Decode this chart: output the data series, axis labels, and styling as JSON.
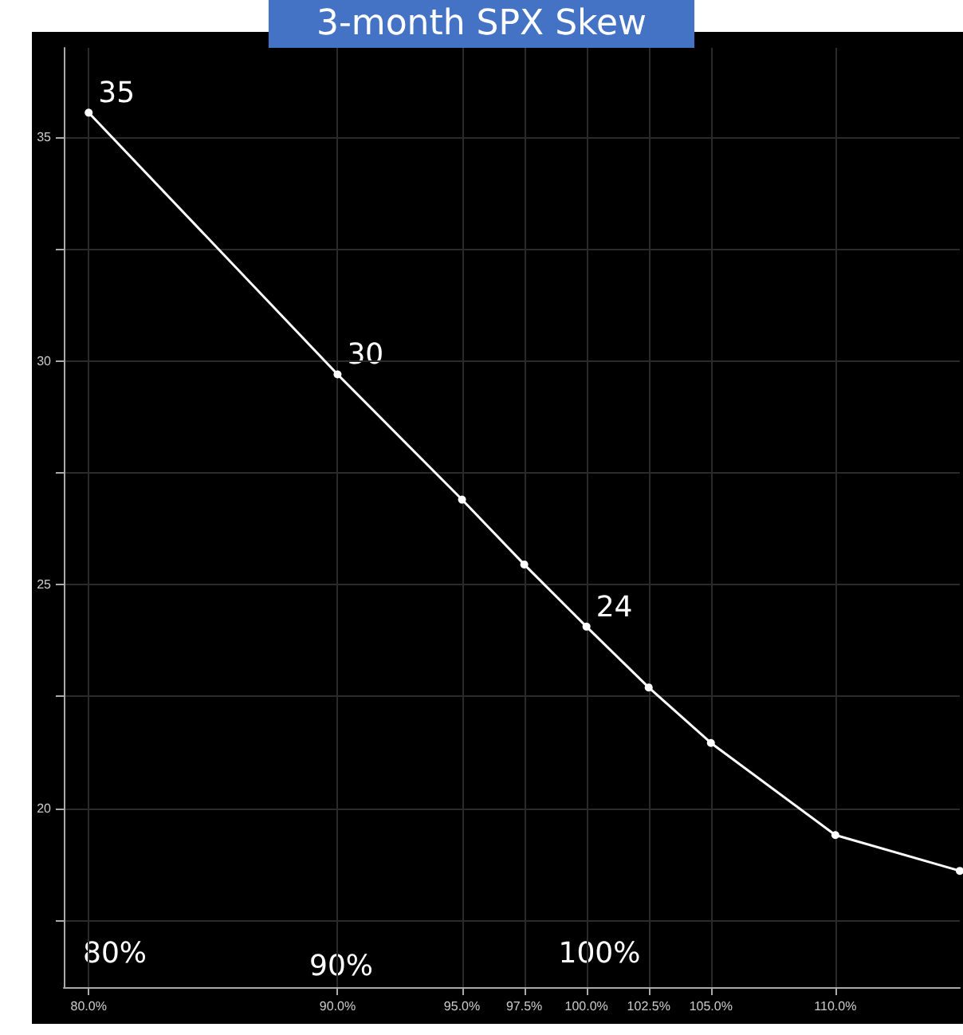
{
  "chart_data": {
    "type": "line",
    "title": "3-month SPX Skew",
    "x": [
      80,
      90,
      95,
      97.5,
      100,
      102.5,
      105,
      110,
      115
    ],
    "series": [
      {
        "color": "#ffffff",
        "values": [
          35.55,
          29.7,
          26.9,
          25.45,
          24.06,
          22.7,
          21.46,
          19.4,
          18.6
        ]
      }
    ],
    "xlim": [
      79,
      115
    ],
    "xticks": [
      {
        "value": 80,
        "label": "80.0%"
      },
      {
        "value": 90,
        "label": "90.0%"
      },
      {
        "value": 95,
        "label": "95.0%"
      },
      {
        "value": 97.5,
        "label": "97.5%"
      },
      {
        "value": 100,
        "label": "100.0%"
      },
      {
        "value": 102.5,
        "label": "102.5%"
      },
      {
        "value": 105,
        "label": "105.0%"
      },
      {
        "value": 110,
        "label": "110.0%"
      }
    ],
    "ylim": [
      16,
      37
    ],
    "yticks": [
      {
        "value": 17.5,
        "label": null
      },
      20,
      {
        "value": 22.5,
        "label": null
      },
      25,
      {
        "value": 27.5,
        "label": null
      },
      30,
      {
        "value": 32.5,
        "label": null
      },
      35
    ],
    "annotations": [
      {
        "text": "35",
        "x": 80,
        "y": 35.55
      },
      {
        "text": "30",
        "x": 90,
        "y": 29.7
      },
      {
        "text": "24",
        "x": 100,
        "y": 24.06
      },
      "80%",
      "90%",
      "100%"
    ],
    "grid": true,
    "marker": "circle",
    "line_style": "solid"
  }
}
